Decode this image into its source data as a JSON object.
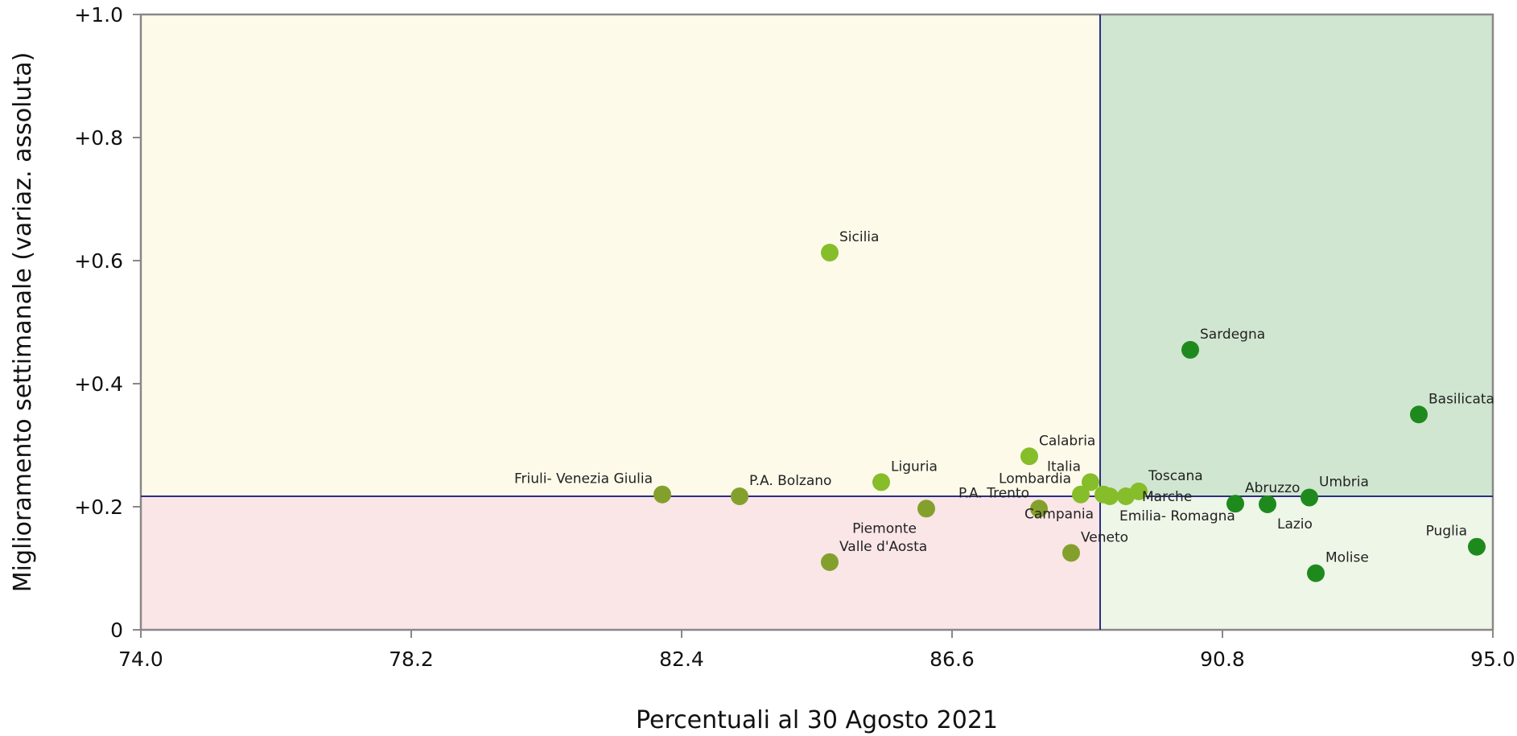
{
  "chart_data": {
    "type": "scatter",
    "title": "",
    "xlabel": "Percentuali al 30 Agosto 2021",
    "ylabel": "Miglioramento settimanale (variaz. assoluta)",
    "xlim": [
      74.0,
      95.0
    ],
    "ylim": [
      0,
      1.0
    ],
    "xticks": [
      74.0,
      78.2,
      82.4,
      86.6,
      90.8,
      95.0
    ],
    "xtick_labels": [
      "74.0",
      "78.2",
      "82.4",
      "86.6",
      "90.8",
      "95.0"
    ],
    "yticks": [
      0,
      0.2,
      0.4,
      0.6,
      0.8,
      1.0
    ],
    "ytick_labels": [
      "0",
      "+0.2",
      "+0.4",
      "+0.6",
      "+0.8",
      "+1.0"
    ],
    "grid": false,
    "reference_lines": {
      "x": 88.9,
      "y": 0.217
    },
    "quadrant_colors": {
      "top_left": "#fdfaea",
      "top_right": "#d1e6d1",
      "bottom_left": "#fae5e7",
      "bottom_right": "#eef6e8"
    },
    "colors": {
      "reference_line": "#2b2e80",
      "frame": "#888888",
      "light_green": "#86bd2a",
      "olive": "#84a02c",
      "dark_green": "#1e8a1e"
    },
    "points": [
      {
        "label": "Sicilia",
        "x": 84.7,
        "y": 0.613,
        "color": "#86bd2a",
        "label_pos": "ne"
      },
      {
        "label": "Friuli- Venezia Giulia",
        "x": 82.1,
        "y": 0.22,
        "color": "#84a02c",
        "label_pos": "nw"
      },
      {
        "label": "P.A. Bolzano",
        "x": 83.3,
        "y": 0.217,
        "color": "#84a02c",
        "label_pos": "ne"
      },
      {
        "label": "Liguria",
        "x": 85.5,
        "y": 0.24,
        "color": "#86bd2a",
        "label_pos": "ne"
      },
      {
        "label": "Piemonte",
        "x": 86.2,
        "y": 0.197,
        "color": "#84a02c",
        "label_pos": "sw"
      },
      {
        "label": "Valle d'Aosta",
        "x": 84.7,
        "y": 0.11,
        "color": "#84a02c",
        "label_pos": "ne"
      },
      {
        "label": "P.A. Trento",
        "x": 87.95,
        "y": 0.197,
        "color": "#84a02c",
        "label_pos": "nw"
      },
      {
        "label": "Calabria",
        "x": 87.8,
        "y": 0.282,
        "color": "#86bd2a",
        "label_pos": "ne"
      },
      {
        "label": "Lombardia",
        "x": 88.6,
        "y": 0.22,
        "color": "#86bd2a",
        "label_pos": "nw"
      },
      {
        "label": "Italia",
        "x": 88.75,
        "y": 0.24,
        "color": "#86bd2a",
        "label_pos": "nw"
      },
      {
        "label": "Campania",
        "x": 88.95,
        "y": 0.22,
        "color": "#86bd2a",
        "label_pos": "sw"
      },
      {
        "label": "Veneto",
        "x": 88.45,
        "y": 0.125,
        "color": "#84a02c",
        "label_pos": "ne"
      },
      {
        "label": "Toscana",
        "x": 89.5,
        "y": 0.225,
        "color": "#86bd2a",
        "label_pos": "ne"
      },
      {
        "label": "Marche",
        "x": 89.3,
        "y": 0.217,
        "color": "#86bd2a",
        "label_pos": "e"
      },
      {
        "label": "Emilia- Romagna",
        "x": 89.05,
        "y": 0.217,
        "color": "#86bd2a",
        "label_pos": "se"
      },
      {
        "label": "Sardegna",
        "x": 90.3,
        "y": 0.455,
        "color": "#1e8a1e",
        "label_pos": "ne"
      },
      {
        "label": "Abruzzo",
        "x": 91.0,
        "y": 0.205,
        "color": "#1e8a1e",
        "label_pos": "ne"
      },
      {
        "label": "Lazio",
        "x": 91.5,
        "y": 0.204,
        "color": "#1e8a1e",
        "label_pos": "se"
      },
      {
        "label": "Umbria",
        "x": 92.15,
        "y": 0.215,
        "color": "#1e8a1e",
        "label_pos": "ne"
      },
      {
        "label": "Molise",
        "x": 92.25,
        "y": 0.092,
        "color": "#1e8a1e",
        "label_pos": "ne"
      },
      {
        "label": "Basilicata",
        "x": 93.85,
        "y": 0.35,
        "color": "#1e8a1e",
        "label_pos": "ne"
      },
      {
        "label": "Puglia",
        "x": 94.75,
        "y": 0.135,
        "color": "#1e8a1e",
        "label_pos": "nw"
      }
    ]
  }
}
